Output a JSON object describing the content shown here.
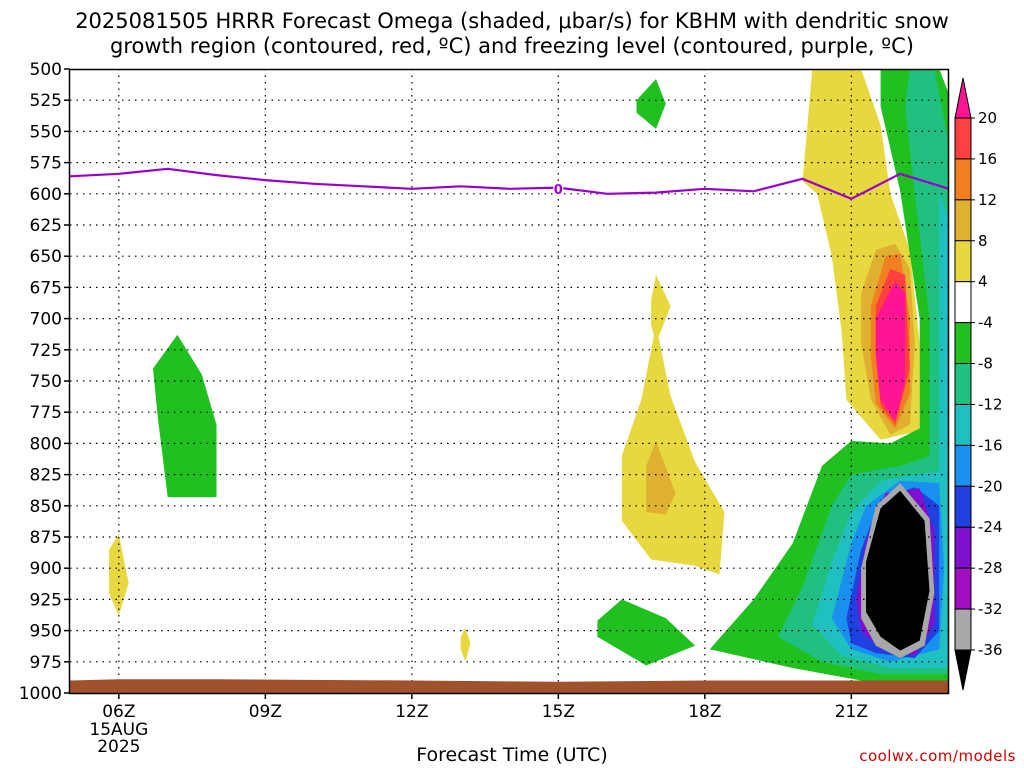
{
  "title_line1": "2025081505 HRRR Forecast Omega (shaded, μbar/s) for KBHM with dendritic snow",
  "title_line2": "growth region (contoured, red, ºC) and freezing level (contoured, purple, ºC)",
  "credit": "coolwx.com/models",
  "chart_data": {
    "type": "heatmap",
    "title": "2025081505 HRRR Forecast Omega (shaded, μbar/s) for KBHM with dendritic snow growth region (contoured, red, ºC) and freezing level (contoured, purple, ºC)",
    "xlabel": "Forecast Time (UTC)",
    "ylabel": "",
    "x_ticks": [
      "06Z",
      "09Z",
      "12Z",
      "15Z",
      "18Z",
      "21Z"
    ],
    "x_date": [
      "15AUG",
      "2025"
    ],
    "xlim_hours": [
      5,
      23
    ],
    "y_ticks": [
      500,
      525,
      550,
      575,
      600,
      625,
      650,
      675,
      700,
      725,
      750,
      775,
      800,
      825,
      850,
      875,
      900,
      925,
      950,
      975,
      1000
    ],
    "ylim": [
      1000,
      500
    ],
    "grid": true,
    "colorbar": {
      "labels": [
        "20",
        "16",
        "12",
        "8",
        "4",
        "-4",
        "-8",
        "-12",
        "-16",
        "-20",
        "-24",
        "-28",
        "-32",
        "-36"
      ],
      "colors": [
        "#ff1493",
        "#ff4040",
        "#f08020",
        "#e0b030",
        "#e8d840",
        "#ffffff",
        "#20c020",
        "#20c080",
        "#20c0c0",
        "#1890f0",
        "#2040e0",
        "#8010d0",
        "#a010c0",
        "#a8a8a8",
        "#000000"
      ]
    },
    "freezing_level": {
      "label": "0",
      "points": [
        [
          5.0,
          586
        ],
        [
          6.0,
          584
        ],
        [
          7.0,
          580
        ],
        [
          8.0,
          585
        ],
        [
          9.0,
          589
        ],
        [
          10.0,
          592
        ],
        [
          11.0,
          594
        ],
        [
          12.0,
          596
        ],
        [
          13.0,
          594
        ],
        [
          14.0,
          596
        ],
        [
          15.0,
          595
        ],
        [
          16.0,
          600
        ],
        [
          17.0,
          599
        ],
        [
          18.0,
          596
        ],
        [
          19.0,
          598
        ],
        [
          20.0,
          588
        ],
        [
          21.0,
          604
        ],
        [
          22.0,
          584
        ],
        [
          23.0,
          596
        ]
      ]
    },
    "omega_regions": [
      {
        "level": "-8",
        "points": [
          [
            6.7,
            740
          ],
          [
            7.2,
            713
          ],
          [
            7.7,
            745
          ],
          [
            8.0,
            785
          ],
          [
            8.0,
            843
          ],
          [
            7.0,
            843
          ],
          [
            6.8,
            780
          ]
        ]
      },
      {
        "level": "4",
        "points": [
          [
            5.8,
            885
          ],
          [
            6.0,
            873
          ],
          [
            6.2,
            912
          ],
          [
            6.0,
            938
          ],
          [
            5.8,
            920
          ]
        ]
      },
      {
        "level": "-8",
        "points": [
          [
            16.6,
            525
          ],
          [
            17.0,
            508
          ],
          [
            17.2,
            528
          ],
          [
            17.0,
            548
          ],
          [
            16.6,
            535
          ]
        ]
      },
      {
        "level": "4",
        "points": [
          [
            16.9,
            685
          ],
          [
            17.0,
            665
          ],
          [
            17.3,
            690
          ],
          [
            17.0,
            720
          ],
          [
            16.9,
            705
          ]
        ]
      },
      {
        "level": "4",
        "points": [
          [
            16.3,
            810
          ],
          [
            16.7,
            765
          ],
          [
            17.0,
            705
          ],
          [
            17.3,
            762
          ],
          [
            17.8,
            815
          ],
          [
            18.4,
            855
          ],
          [
            18.3,
            905
          ],
          [
            17.8,
            898
          ],
          [
            16.9,
            893
          ],
          [
            16.3,
            862
          ]
        ]
      },
      {
        "level": "8",
        "points": [
          [
            16.8,
            818
          ],
          [
            17.0,
            798
          ],
          [
            17.4,
            840
          ],
          [
            17.2,
            857
          ],
          [
            16.8,
            855
          ]
        ]
      },
      {
        "level": "4",
        "points": [
          [
            13.0,
            955
          ],
          [
            13.1,
            948
          ],
          [
            13.2,
            960
          ],
          [
            13.1,
            975
          ],
          [
            13.0,
            965
          ]
        ]
      },
      {
        "level": "-8",
        "points": [
          [
            15.8,
            942
          ],
          [
            16.3,
            925
          ],
          [
            17.2,
            940
          ],
          [
            17.8,
            962
          ],
          [
            16.8,
            978
          ],
          [
            15.8,
            955
          ]
        ]
      },
      {
        "level": "4",
        "points": [
          [
            20.0,
            590
          ],
          [
            20.2,
            500
          ],
          [
            21.2,
            500
          ],
          [
            21.6,
            545
          ],
          [
            21.8,
            600
          ],
          [
            22.2,
            645
          ],
          [
            22.4,
            720
          ],
          [
            22.4,
            790
          ],
          [
            21.6,
            797
          ],
          [
            20.9,
            765
          ],
          [
            20.8,
            710
          ],
          [
            20.6,
            650
          ],
          [
            20.3,
            600
          ]
        ]
      },
      {
        "level": "8",
        "points": [
          [
            21.2,
            680
          ],
          [
            21.5,
            645
          ],
          [
            21.9,
            640
          ],
          [
            22.2,
            660
          ],
          [
            22.3,
            720
          ],
          [
            22.2,
            785
          ],
          [
            21.8,
            793
          ],
          [
            21.4,
            765
          ],
          [
            21.2,
            720
          ]
        ]
      },
      {
        "level": "12",
        "points": [
          [
            21.4,
            690
          ],
          [
            21.7,
            650
          ],
          [
            22.0,
            648
          ],
          [
            22.2,
            700
          ],
          [
            22.2,
            760
          ],
          [
            21.9,
            788
          ],
          [
            21.5,
            768
          ],
          [
            21.4,
            730
          ]
        ]
      },
      {
        "level": "16",
        "points": [
          [
            21.5,
            690
          ],
          [
            21.8,
            660
          ],
          [
            22.1,
            665
          ],
          [
            22.2,
            740
          ],
          [
            21.9,
            785
          ],
          [
            21.6,
            770
          ],
          [
            21.5,
            730
          ]
        ]
      },
      {
        "level": "20",
        "points": [
          [
            21.5,
            700
          ],
          [
            21.9,
            670
          ],
          [
            22.1,
            680
          ],
          [
            22.1,
            750
          ],
          [
            21.9,
            782
          ],
          [
            21.6,
            765
          ],
          [
            21.5,
            730
          ]
        ]
      },
      {
        "level": "-8",
        "points": [
          [
            18.1,
            965
          ],
          [
            19.0,
            925
          ],
          [
            19.8,
            880
          ],
          [
            20.4,
            818
          ],
          [
            21.0,
            798
          ],
          [
            21.8,
            800
          ],
          [
            22.4,
            788
          ],
          [
            22.4,
            700
          ],
          [
            22.0,
            598
          ],
          [
            21.6,
            530
          ],
          [
            21.6,
            500
          ],
          [
            22.8,
            500
          ],
          [
            23.0,
            520
          ],
          [
            23.0,
            990
          ],
          [
            21.2,
            990
          ],
          [
            19.8,
            980
          ]
        ]
      },
      {
        "level": "-12",
        "points": [
          [
            19.5,
            955
          ],
          [
            20.0,
            915
          ],
          [
            20.6,
            850
          ],
          [
            21.0,
            825
          ],
          [
            22.0,
            818
          ],
          [
            22.6,
            810
          ],
          [
            22.6,
            700
          ],
          [
            22.3,
            600
          ],
          [
            22.1,
            530
          ],
          [
            22.2,
            500
          ],
          [
            22.7,
            500
          ],
          [
            23.0,
            560
          ],
          [
            23.0,
            985
          ],
          [
            21.6,
            985
          ],
          [
            20.4,
            975
          ]
        ]
      },
      {
        "level": "-16",
        "points": [
          [
            20.2,
            945
          ],
          [
            20.6,
            895
          ],
          [
            21.0,
            855
          ],
          [
            21.6,
            830
          ],
          [
            22.8,
            822
          ],
          [
            22.8,
            600
          ],
          [
            23.0,
            620
          ],
          [
            23.0,
            980
          ],
          [
            21.8,
            980
          ],
          [
            20.8,
            970
          ]
        ]
      },
      {
        "level": "-20",
        "points": [
          [
            20.6,
            940
          ],
          [
            21.0,
            880
          ],
          [
            21.3,
            850
          ],
          [
            22.0,
            830
          ],
          [
            22.8,
            832
          ],
          [
            22.9,
            900
          ],
          [
            22.8,
            965
          ],
          [
            21.8,
            975
          ],
          [
            21.0,
            965
          ]
        ]
      },
      {
        "level": "-24",
        "points": [
          [
            20.9,
            940
          ],
          [
            21.2,
            885
          ],
          [
            21.6,
            845
          ],
          [
            22.3,
            835
          ],
          [
            22.8,
            850
          ],
          [
            22.8,
            950
          ],
          [
            22.3,
            972
          ],
          [
            21.5,
            968
          ],
          [
            21.0,
            960
          ]
        ]
      },
      {
        "level": "-28",
        "points": [
          [
            21.1,
            925
          ],
          [
            21.3,
            878
          ],
          [
            21.7,
            840
          ],
          [
            22.4,
            836
          ],
          [
            22.7,
            870
          ],
          [
            22.7,
            945
          ],
          [
            22.3,
            970
          ],
          [
            21.6,
            965
          ],
          [
            21.2,
            950
          ]
        ]
      },
      {
        "level": "-32",
        "points": [
          [
            21.2,
            900
          ],
          [
            21.5,
            850
          ],
          [
            22.0,
            832
          ],
          [
            22.6,
            860
          ],
          [
            22.7,
            920
          ],
          [
            22.5,
            962
          ],
          [
            22.0,
            972
          ],
          [
            21.5,
            962
          ],
          [
            21.2,
            940
          ]
        ]
      },
      {
        "level": "-36",
        "points": [
          [
            21.3,
            895
          ],
          [
            21.6,
            852
          ],
          [
            22.0,
            838
          ],
          [
            22.5,
            862
          ],
          [
            22.6,
            918
          ],
          [
            22.4,
            958
          ],
          [
            22.0,
            966
          ],
          [
            21.6,
            955
          ],
          [
            21.3,
            935
          ]
        ]
      }
    ]
  }
}
